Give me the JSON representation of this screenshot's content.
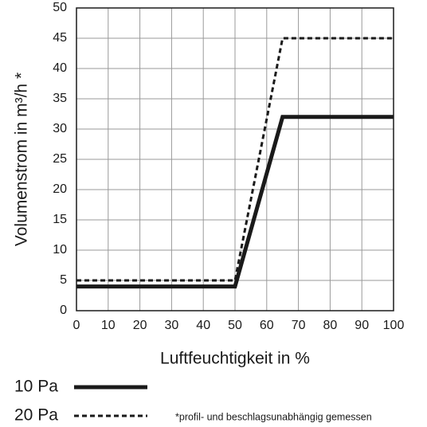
{
  "chart_data": {
    "type": "line",
    "x_label": "Luftfeuchtigkeit in %",
    "y_label": "Volumenstrom in m³/h *",
    "annotation": "*profil- und beschlagsunabhängig gemessen",
    "x": [
      0,
      50,
      65,
      100
    ],
    "series": [
      {
        "name": "10 Pa",
        "color": "#1a1a1a",
        "style": "solid",
        "values": [
          4,
          4,
          32,
          32
        ]
      },
      {
        "name": "20 Pa",
        "color": "#1a1a1a",
        "style": "dashed",
        "values": [
          5,
          5,
          45,
          45
        ]
      }
    ],
    "xlim": [
      0,
      100
    ],
    "xticks": [
      0,
      10,
      20,
      30,
      40,
      50,
      60,
      70,
      80,
      90,
      100
    ],
    "ylim": [
      0,
      50
    ],
    "yticks": [
      0,
      5,
      10,
      15,
      20,
      25,
      30,
      35,
      40,
      45,
      50
    ],
    "grid": true
  }
}
